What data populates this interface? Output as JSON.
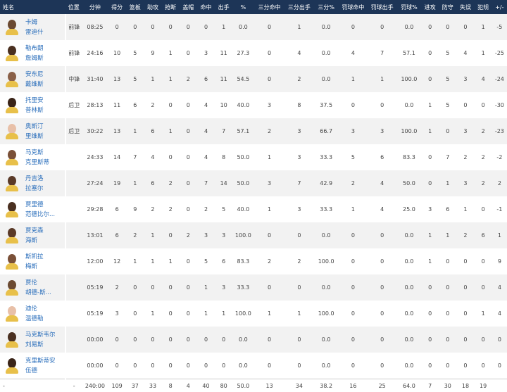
{
  "headers": [
    "姓名",
    "位置",
    "分钟",
    "得分",
    "篮板",
    "助攻",
    "抢断",
    "盖帽",
    "命中",
    "出手",
    "%",
    "三分命中",
    "三分出手",
    "三分%",
    "罚球命中",
    "罚球出手",
    "罚球%",
    "进攻",
    "防守",
    "失误",
    "犯规",
    "+/-"
  ],
  "colors": {
    "header_bg": "#1d3557",
    "link": "#2a6ebb",
    "row_alt": "#f2f2f2"
  },
  "players": [
    {
      "first": "卡姆",
      "last": "雷迪什",
      "skin": "#6b4a32",
      "pos": "前锋",
      "stats": [
        "08:25",
        "0",
        "0",
        "0",
        "0",
        "0",
        "0",
        "1",
        "0.0",
        "0",
        "1",
        "0.0",
        "0",
        "0",
        "0.0",
        "0",
        "0",
        "0",
        "1",
        "-5"
      ]
    },
    {
      "first": "勒布朗",
      "last": "詹姆斯",
      "skin": "#4a3020",
      "pos": "前锋",
      "stats": [
        "24:16",
        "10",
        "5",
        "9",
        "1",
        "0",
        "3",
        "11",
        "27.3",
        "0",
        "4",
        "0.0",
        "4",
        "7",
        "57.1",
        "0",
        "5",
        "4",
        "1",
        "-25"
      ]
    },
    {
      "first": "安东尼",
      "last": "戴维斯",
      "skin": "#8a6048",
      "pos": "中锋",
      "stats": [
        "31:40",
        "13",
        "5",
        "1",
        "1",
        "2",
        "6",
        "11",
        "54.5",
        "0",
        "2",
        "0.0",
        "1",
        "1",
        "100.0",
        "0",
        "5",
        "3",
        "4",
        "-24"
      ]
    },
    {
      "first": "托里安",
      "last": "普林斯",
      "skin": "#3a2418",
      "pos": "后卫",
      "stats": [
        "28:13",
        "11",
        "6",
        "2",
        "0",
        "0",
        "4",
        "10",
        "40.0",
        "3",
        "8",
        "37.5",
        "0",
        "0",
        "0.0",
        "1",
        "5",
        "0",
        "0",
        "-30"
      ]
    },
    {
      "first": "奥斯汀",
      "last": "里维斯",
      "skin": "#e8c0a8",
      "pos": "后卫",
      "stats": [
        "30:22",
        "13",
        "1",
        "6",
        "1",
        "0",
        "4",
        "7",
        "57.1",
        "2",
        "3",
        "66.7",
        "3",
        "3",
        "100.0",
        "1",
        "0",
        "3",
        "2",
        "-23"
      ]
    },
    {
      "first": "马克斯",
      "last": "克里斯蒂",
      "skin": "#7a5038",
      "pos": "",
      "stats": [
        "24:33",
        "14",
        "7",
        "4",
        "0",
        "0",
        "4",
        "8",
        "50.0",
        "1",
        "3",
        "33.3",
        "5",
        "6",
        "83.3",
        "0",
        "7",
        "2",
        "2",
        "-2"
      ]
    },
    {
      "first": "丹吉洛",
      "last": "拉塞尔",
      "skin": "#5a3a28",
      "pos": "",
      "stats": [
        "27:24",
        "19",
        "1",
        "6",
        "2",
        "0",
        "7",
        "14",
        "50.0",
        "3",
        "7",
        "42.9",
        "2",
        "4",
        "50.0",
        "0",
        "1",
        "3",
        "2",
        "2"
      ]
    },
    {
      "first": "贾里德",
      "last": "范德比尔...",
      "skin": "#4a3020",
      "pos": "",
      "stats": [
        "29:28",
        "6",
        "9",
        "2",
        "2",
        "0",
        "2",
        "5",
        "40.0",
        "1",
        "3",
        "33.3",
        "1",
        "4",
        "25.0",
        "3",
        "6",
        "1",
        "0",
        "-1"
      ]
    },
    {
      "first": "贾克森",
      "last": "海斯",
      "skin": "#5a3a28",
      "pos": "",
      "stats": [
        "13:01",
        "6",
        "2",
        "1",
        "0",
        "2",
        "3",
        "3",
        "100.0",
        "0",
        "0",
        "0.0",
        "0",
        "0",
        "0.0",
        "1",
        "1",
        "2",
        "6",
        "1"
      ]
    },
    {
      "first": "斯凯拉",
      "last": "梅斯",
      "skin": "#7a5038",
      "pos": "",
      "stats": [
        "12:00",
        "12",
        "1",
        "1",
        "1",
        "0",
        "5",
        "6",
        "83.3",
        "2",
        "2",
        "100.0",
        "0",
        "0",
        "0.0",
        "1",
        "0",
        "0",
        "0",
        "9"
      ]
    },
    {
      "first": "贾伦",
      "last": "胡德-斯...",
      "skin": "#6b4a32",
      "pos": "",
      "stats": [
        "05:19",
        "2",
        "0",
        "0",
        "0",
        "0",
        "1",
        "3",
        "33.3",
        "0",
        "0",
        "0.0",
        "0",
        "0",
        "0.0",
        "0",
        "0",
        "0",
        "0",
        "4"
      ]
    },
    {
      "first": "迪伦",
      "last": "温德勒",
      "skin": "#e8c0a8",
      "pos": "",
      "stats": [
        "05:19",
        "3",
        "0",
        "1",
        "0",
        "0",
        "1",
        "1",
        "100.0",
        "1",
        "1",
        "100.0",
        "0",
        "0",
        "0.0",
        "0",
        "0",
        "0",
        "1",
        "4"
      ]
    },
    {
      "first": "马克斯韦尔",
      "last": "刘易斯",
      "skin": "#4a3020",
      "pos": "",
      "stats": [
        "00:00",
        "0",
        "0",
        "0",
        "0",
        "0",
        "0",
        "0",
        "0.0",
        "0",
        "0",
        "0.0",
        "0",
        "0",
        "0.0",
        "0",
        "0",
        "0",
        "0",
        "0"
      ]
    },
    {
      "first": "克里斯蒂安",
      "last": "伍德",
      "skin": "#3a2418",
      "pos": "",
      "stats": [
        "00:00",
        "0",
        "0",
        "0",
        "0",
        "0",
        "0",
        "0",
        "0.0",
        "0",
        "0",
        "0.0",
        "0",
        "0",
        "0.0",
        "0",
        "0",
        "0",
        "0",
        "0"
      ]
    }
  ],
  "total": {
    "name": "-",
    "pos": "-",
    "stats": [
      "240:00",
      "109",
      "37",
      "33",
      "8",
      "4",
      "40",
      "80",
      "50.0",
      "13",
      "34",
      "38.2",
      "16",
      "25",
      "64.0",
      "7",
      "30",
      "18",
      "19",
      ""
    ]
  }
}
